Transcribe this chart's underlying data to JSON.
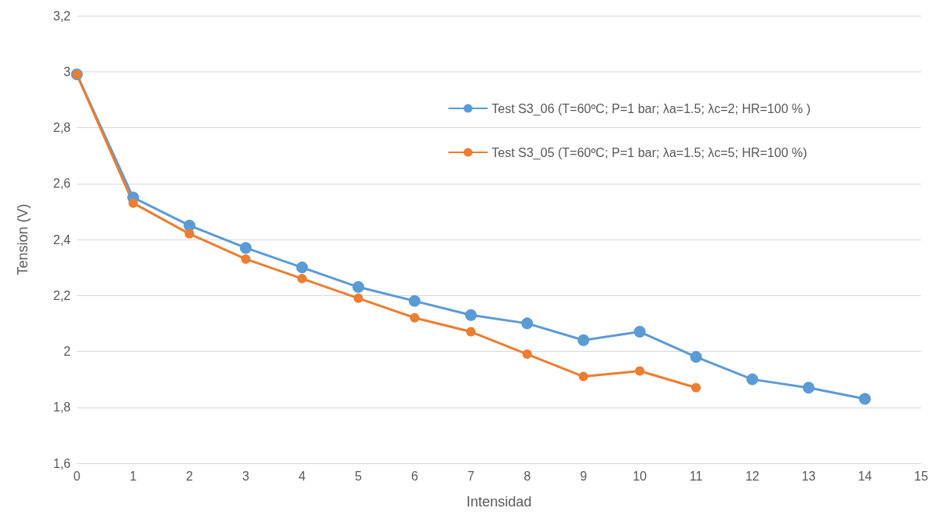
{
  "chart_data": {
    "type": "line",
    "xlabel": "Intensidad",
    "ylabel": "Tension (V)",
    "xlim": [
      0,
      15
    ],
    "xticks": [
      0,
      1,
      2,
      3,
      4,
      5,
      6,
      7,
      8,
      9,
      10,
      11,
      12,
      13,
      14,
      15
    ],
    "ylim": [
      1.6,
      3.2
    ],
    "yticks": [
      {
        "value": 1.6,
        "label": "1,6"
      },
      {
        "value": 1.8,
        "label": "1,8"
      },
      2,
      {
        "value": 2.2,
        "label": "2,2"
      },
      {
        "value": 2.4,
        "label": "2,4"
      },
      {
        "value": 2.6,
        "label": "2,6"
      },
      {
        "value": 2.8,
        "label": "2,8"
      },
      3,
      {
        "value": 3.2,
        "label": "3,2"
      }
    ],
    "grid": "y",
    "legend": "top right",
    "marker": "circle",
    "line_style": "solid",
    "series": [
      {
        "name": "Test S3_06 (T=60ºC; P=1 bar; λa=1.5; λc=2; HR=100 % )",
        "color": "#5b9bd5",
        "x": [
          0,
          1,
          2,
          3,
          4,
          5,
          6,
          7,
          8,
          9,
          10,
          11,
          12,
          13,
          14
        ],
        "values": [
          2.99,
          2.55,
          2.45,
          2.37,
          2.3,
          2.23,
          2.18,
          2.13,
          2.1,
          2.04,
          2.07,
          1.98,
          1.9,
          1.87,
          1.83
        ]
      },
      {
        "name": "Test S3_05 (T=60ºC; P=1 bar; λa=1.5; λc=5; HR=100 %)",
        "color": "#ed7d31",
        "x": [
          0,
          1,
          2,
          3,
          4,
          5,
          6,
          7,
          8,
          9,
          10,
          11
        ],
        "values": [
          2.99,
          2.53,
          2.42,
          2.33,
          2.26,
          2.19,
          2.12,
          2.07,
          1.99,
          1.91,
          1.93,
          1.87
        ]
      }
    ]
  }
}
